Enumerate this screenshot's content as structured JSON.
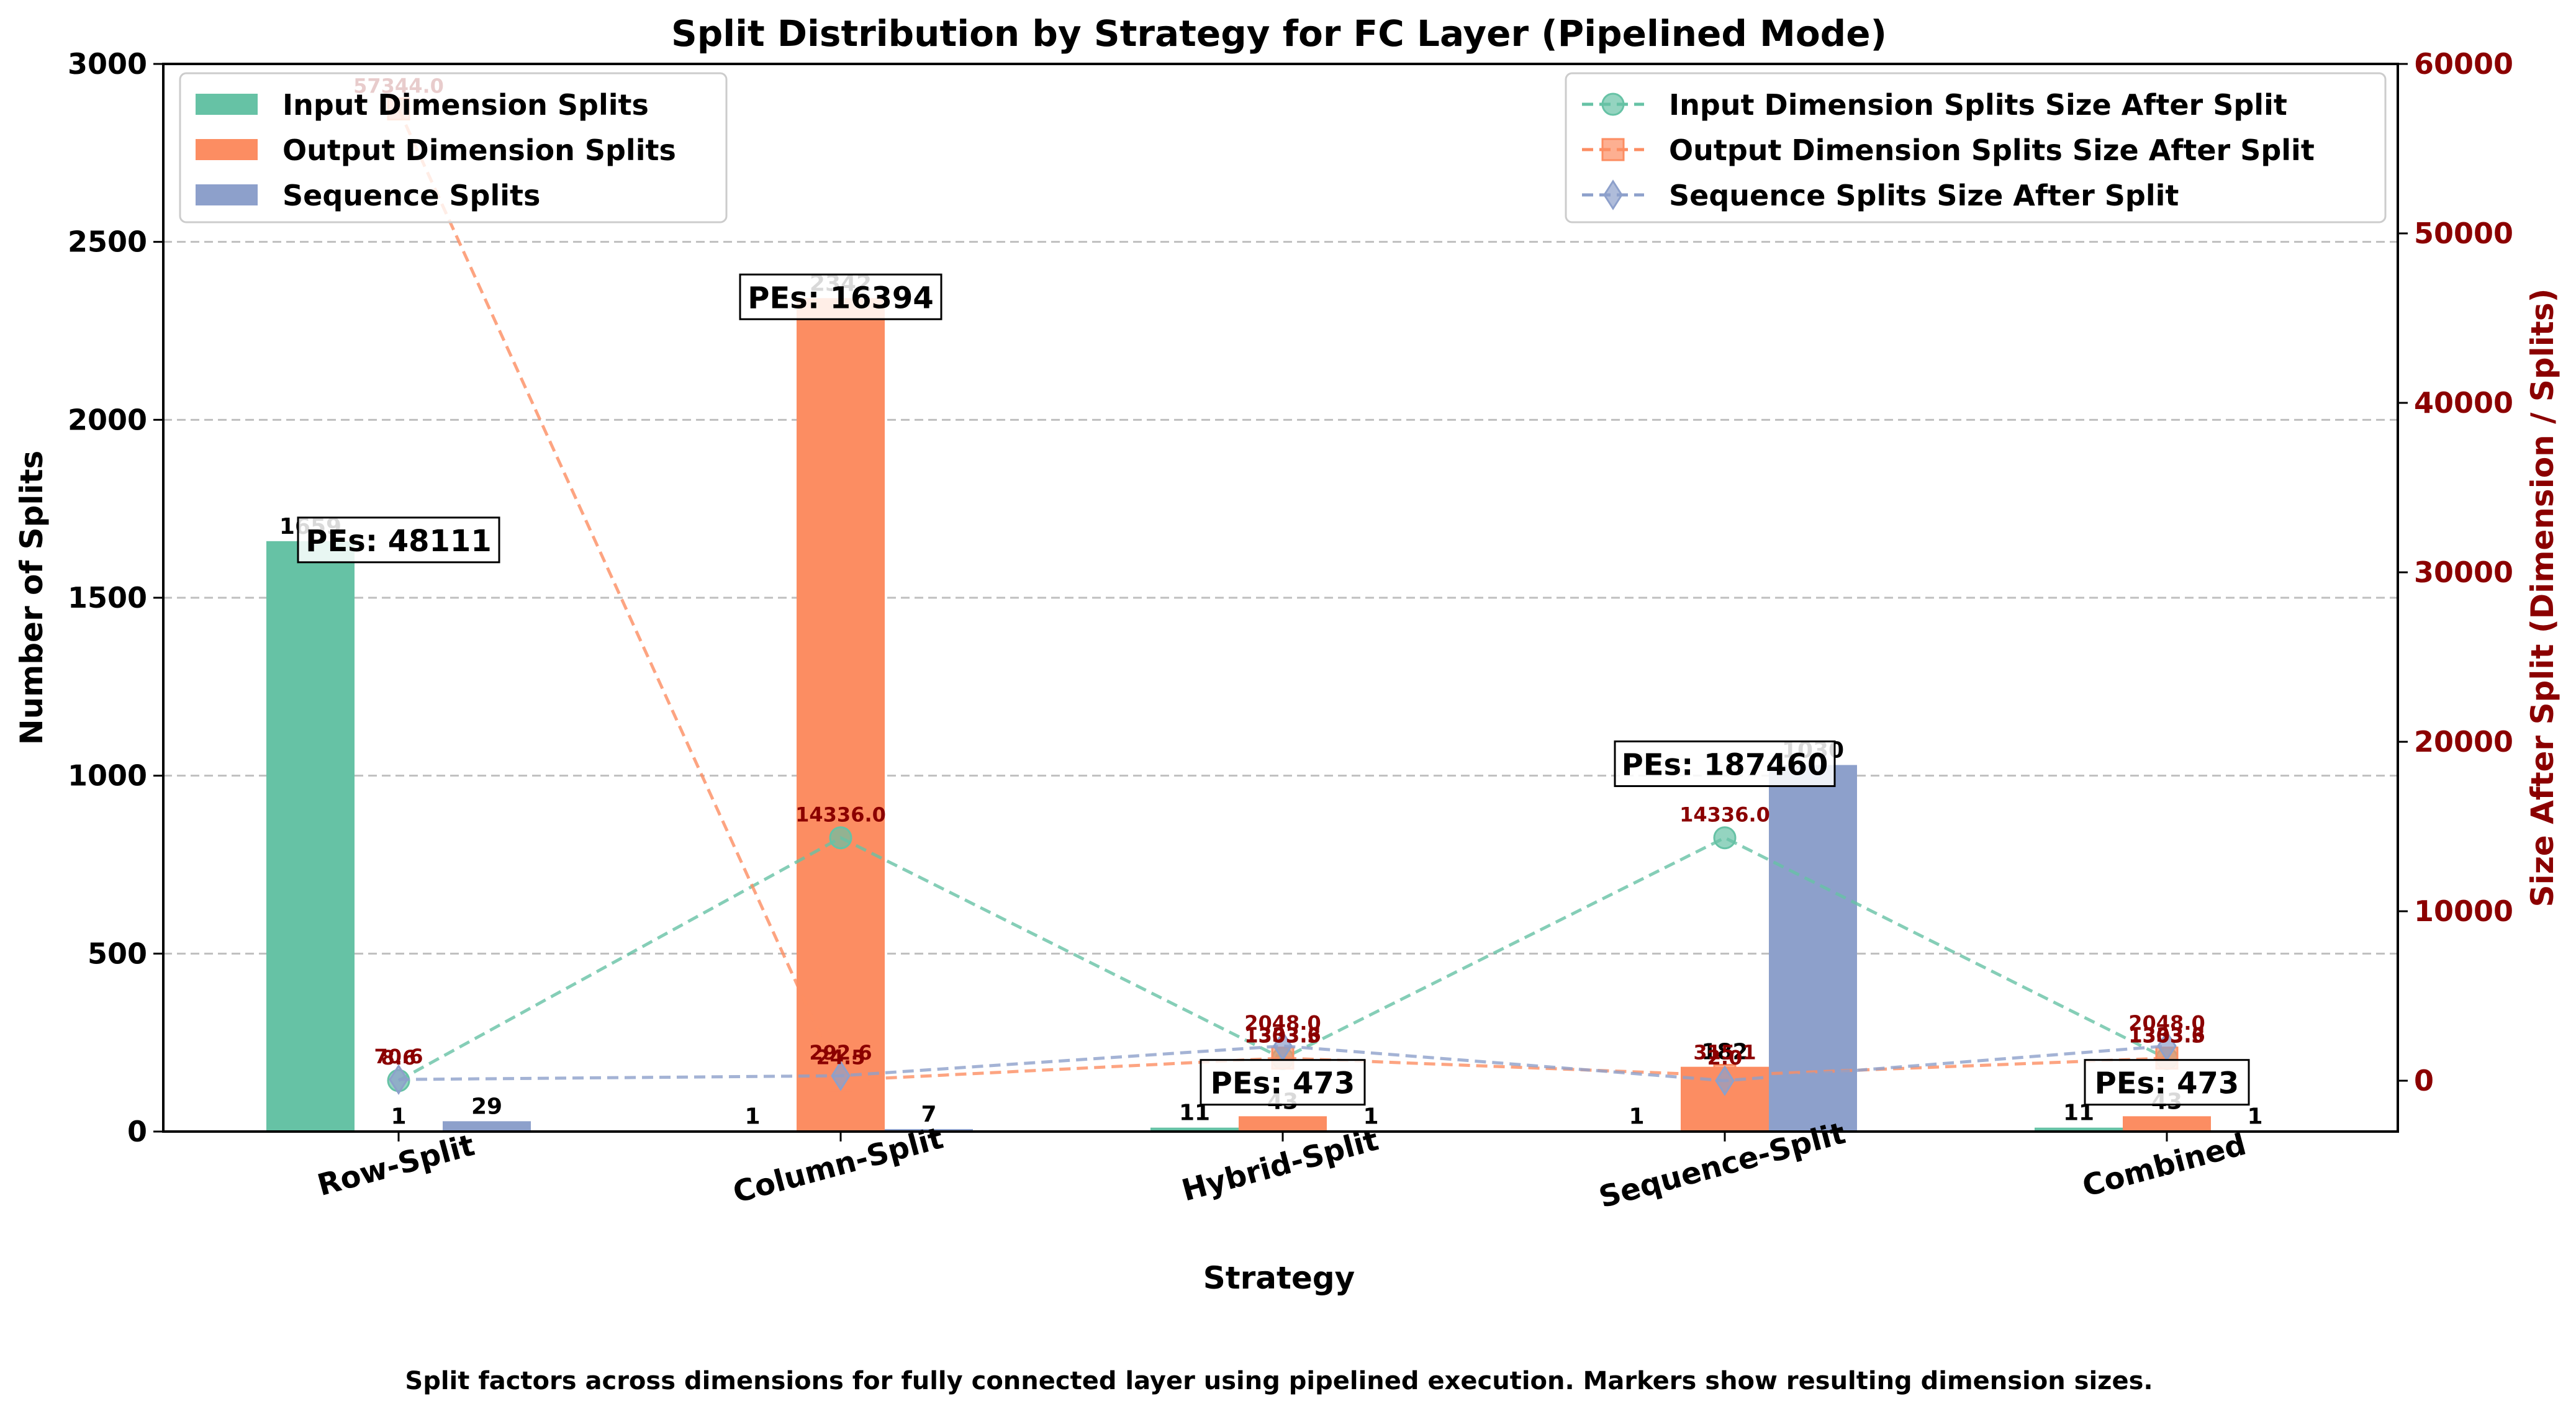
{
  "chart_data": {
    "type": "bar",
    "title": "Split Distribution by Strategy for FC Layer (Pipelined Mode)",
    "xlabel": "Strategy",
    "ylabel": "Number of Splits",
    "y2label": "Size After Split (Dimension / Splits)",
    "caption": "Split factors across dimensions for fully connected layer using pipelined execution. Markers show resulting dimension sizes.",
    "categories": [
      "Row-Split",
      "Column-Split",
      "Hybrid-Split",
      "Sequence-Split",
      "Combined"
    ],
    "ylim": [
      0,
      3000
    ],
    "yticks": [
      0,
      500,
      1000,
      1500,
      2000,
      2500,
      3000
    ],
    "y2lim": [
      -3000,
      60000
    ],
    "y2ticks": [
      0,
      10000,
      20000,
      30000,
      40000,
      50000,
      60000
    ],
    "grid": "horizontal",
    "series": [
      {
        "name": "Input Dimension Splits",
        "color": "#66c2a5",
        "values": [
          1659,
          1,
          11,
          1,
          11
        ],
        "labels": [
          "1659",
          "1",
          "11",
          "1",
          "11"
        ]
      },
      {
        "name": "Output Dimension Splits",
        "color": "#fc8d62",
        "values": [
          1,
          2342,
          43,
          182,
          43
        ],
        "labels": [
          "1",
          "2342",
          "43",
          "182",
          "43"
        ]
      },
      {
        "name": "Sequence Splits",
        "color": "#8da0cb",
        "values": [
          29,
          7,
          1,
          1030,
          1
        ],
        "labels": [
          "29",
          "7",
          "1",
          "1030",
          "1"
        ]
      }
    ],
    "size_series": [
      {
        "name": "Input Dimension Splits Size After Split",
        "color": "#66c2a5",
        "marker": "circle",
        "values": [
          8.6,
          14336.0,
          1303.3,
          14336.0,
          1303.3
        ],
        "labels": [
          "8.6",
          "14336.0",
          "1303.3",
          "14336.0",
          "1303.3"
        ]
      },
      {
        "name": "Output Dimension Splits Size After Split",
        "color": "#fc8d62",
        "marker": "square",
        "values": [
          57344.0,
          24.5,
          1333.6,
          315.1,
          1333.6
        ],
        "labels": [
          "57344.0",
          "24.5",
          "1333.6",
          "315.1",
          "1333.6"
        ]
      },
      {
        "name": "Sequence Splits Size After Split",
        "color": "#8da0cb",
        "marker": "diamond",
        "values": [
          70.6,
          292.6,
          2048.0,
          2.0,
          2048.0
        ],
        "labels": [
          "70.6",
          "292.6",
          "2048.0",
          "2.0",
          "2048.0"
        ]
      }
    ],
    "pe_labels": [
      "PEs: 48111",
      "PEs: 16394",
      "PEs: 473",
      "PEs: 187460",
      "PEs: 473"
    ],
    "legend_left": "upper-left",
    "legend_right": "upper-right"
  }
}
